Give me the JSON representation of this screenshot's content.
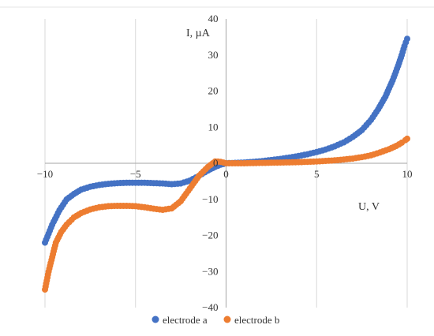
{
  "chart_data": {
    "type": "scatter",
    "title": "",
    "xlabel": "U, V",
    "ylabel": "I, µA",
    "xlim": [
      -10,
      10
    ],
    "ylim": [
      -40,
      40
    ],
    "x_ticks": [
      -10,
      -5,
      0,
      5,
      10
    ],
    "x_tick_labels": [
      "−10",
      "−5",
      "0",
      "5",
      "10"
    ],
    "y_ticks": [
      -40,
      -30,
      -20,
      -10,
      0,
      10,
      20,
      30,
      40
    ],
    "y_tick_labels": [
      "−40",
      "−30",
      "−20",
      "−10",
      "0",
      "10",
      "20",
      "30",
      "40"
    ],
    "grid": "vertical",
    "legend_position": "bottom",
    "series": [
      {
        "name": "electrode a",
        "color": "#4472C4",
        "points": [
          [
            -10.0,
            -22.0
          ],
          [
            -9.6,
            -17.0
          ],
          [
            -9.2,
            -13.0
          ],
          [
            -8.8,
            -10.0
          ],
          [
            -8.4,
            -8.5
          ],
          [
            -8.0,
            -7.3
          ],
          [
            -7.5,
            -6.5
          ],
          [
            -7.0,
            -6.0
          ],
          [
            -6.5,
            -5.7
          ],
          [
            -6.0,
            -5.5
          ],
          [
            -5.5,
            -5.4
          ],
          [
            -5.0,
            -5.4
          ],
          [
            -4.5,
            -5.4
          ],
          [
            -4.0,
            -5.5
          ],
          [
            -3.5,
            -5.6
          ],
          [
            -3.0,
            -5.8
          ],
          [
            -2.5,
            -5.6
          ],
          [
            -2.0,
            -4.8
          ],
          [
            -1.5,
            -3.5
          ],
          [
            -1.0,
            -2.0
          ],
          [
            -0.6,
            -1.0
          ],
          [
            -0.3,
            -0.4
          ],
          [
            0.0,
            0.0
          ],
          [
            0.5,
            0.1
          ],
          [
            1.0,
            0.2
          ],
          [
            1.5,
            0.4
          ],
          [
            2.0,
            0.6
          ],
          [
            2.5,
            0.9
          ],
          [
            3.0,
            1.2
          ],
          [
            3.5,
            1.6
          ],
          [
            4.0,
            2.0
          ],
          [
            4.5,
            2.5
          ],
          [
            5.0,
            3.1
          ],
          [
            5.5,
            3.8
          ],
          [
            6.0,
            4.7
          ],
          [
            6.5,
            5.8
          ],
          [
            7.0,
            7.3
          ],
          [
            7.5,
            9.2
          ],
          [
            8.0,
            12.0
          ],
          [
            8.4,
            15.0
          ],
          [
            8.8,
            18.5
          ],
          [
            9.2,
            23.0
          ],
          [
            9.5,
            27.0
          ],
          [
            9.7,
            30.0
          ],
          [
            9.85,
            32.5
          ],
          [
            10.0,
            34.5
          ]
        ]
      },
      {
        "name": "electrode b",
        "color": "#ED7D31",
        "points": [
          [
            -10.0,
            -35.0
          ],
          [
            -9.8,
            -30.0
          ],
          [
            -9.6,
            -26.0
          ],
          [
            -9.4,
            -22.0
          ],
          [
            -9.1,
            -19.0
          ],
          [
            -8.8,
            -17.0
          ],
          [
            -8.4,
            -15.0
          ],
          [
            -8.0,
            -13.8
          ],
          [
            -7.5,
            -12.8
          ],
          [
            -7.0,
            -12.2
          ],
          [
            -6.5,
            -11.9
          ],
          [
            -6.0,
            -11.8
          ],
          [
            -5.5,
            -11.8
          ],
          [
            -5.0,
            -11.9
          ],
          [
            -4.5,
            -12.2
          ],
          [
            -4.0,
            -12.6
          ],
          [
            -3.5,
            -12.9
          ],
          [
            -3.0,
            -12.5
          ],
          [
            -2.5,
            -10.5
          ],
          [
            -2.0,
            -7.0
          ],
          [
            -1.5,
            -3.5
          ],
          [
            -1.0,
            -1.0
          ],
          [
            -0.6,
            0.5
          ],
          [
            -0.3,
            0.4
          ],
          [
            0.0,
            0.0
          ],
          [
            1.0,
            0.0
          ],
          [
            2.0,
            0.1
          ],
          [
            3.0,
            0.2
          ],
          [
            4.0,
            0.3
          ],
          [
            5.0,
            0.5
          ],
          [
            6.0,
            0.8
          ],
          [
            7.0,
            1.3
          ],
          [
            7.5,
            1.7
          ],
          [
            8.0,
            2.2
          ],
          [
            8.5,
            3.0
          ],
          [
            9.0,
            3.9
          ],
          [
            9.4,
            4.8
          ],
          [
            9.7,
            5.7
          ],
          [
            9.9,
            6.4
          ],
          [
            10.0,
            6.8
          ]
        ]
      }
    ]
  }
}
